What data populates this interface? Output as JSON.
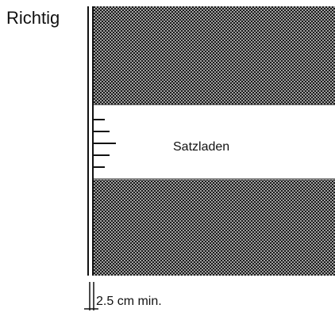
{
  "diagram": {
    "title": "Richtig",
    "center_label": "Satzladen",
    "dimension_label": "2.5 cm min.",
    "colors": {
      "ink": "#111111",
      "hatch_dark": "#1a1a1a",
      "hatch_light": "#ffffff"
    }
  }
}
